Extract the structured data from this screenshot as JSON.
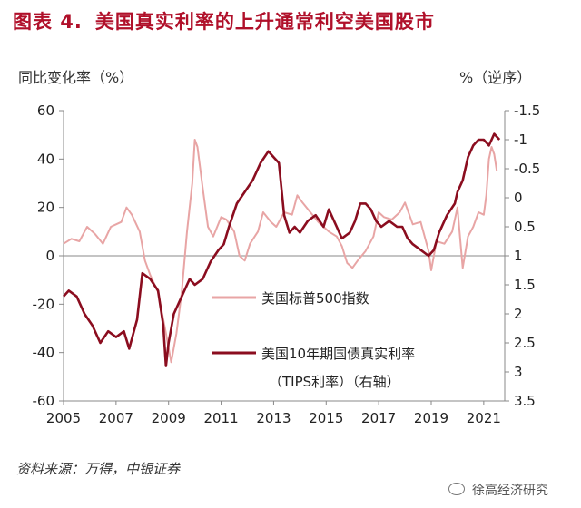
{
  "header": {
    "figure_number": "图表 4.",
    "title": "美国真实利率的上升通常利空美国股市"
  },
  "source": "资料来源：万得，中银证券",
  "watermark": "徐高经济研究",
  "colors": {
    "title": "#b0102a",
    "sp500": "#e8a5a5",
    "tips": "#8b0d1f",
    "axis": "#888888"
  },
  "chart_data": {
    "type": "line",
    "title": "美国真实利率的上升通常利空美国股市",
    "y_left": {
      "label": "同比变化率（%）",
      "min": -60,
      "max": 60,
      "ticks": [
        60,
        40,
        20,
        0,
        -20,
        -40,
        -60
      ]
    },
    "y_right": {
      "label": "%（逆序）",
      "min": -1.5,
      "max": 3.5,
      "inverted": true,
      "ticks": [
        "-1.5",
        "-1",
        "-0.5",
        "0",
        "0.5",
        "1",
        "1.5",
        "2",
        "2.5",
        "3",
        "3.5"
      ]
    },
    "x": {
      "min": 2005,
      "max": 2021.8,
      "ticks": [
        "2005",
        "2007",
        "2009",
        "2011",
        "2013",
        "2015",
        "2017",
        "2019",
        "2021"
      ]
    },
    "series": [
      {
        "name": "美国标普500指数",
        "axis": "left",
        "points": [
          [
            2005.0,
            5
          ],
          [
            2005.3,
            7
          ],
          [
            2005.6,
            6
          ],
          [
            2005.9,
            12
          ],
          [
            2006.2,
            9
          ],
          [
            2006.5,
            5
          ],
          [
            2006.8,
            12
          ],
          [
            2007.0,
            13
          ],
          [
            2007.2,
            14
          ],
          [
            2007.4,
            20
          ],
          [
            2007.6,
            17
          ],
          [
            2007.9,
            10
          ],
          [
            2008.1,
            -2
          ],
          [
            2008.3,
            -8
          ],
          [
            2008.6,
            -15
          ],
          [
            2008.9,
            -32
          ],
          [
            2009.1,
            -44
          ],
          [
            2009.3,
            -32
          ],
          [
            2009.5,
            -15
          ],
          [
            2009.7,
            10
          ],
          [
            2009.9,
            30
          ],
          [
            2010.0,
            48
          ],
          [
            2010.1,
            45
          ],
          [
            2010.3,
            28
          ],
          [
            2010.5,
            12
          ],
          [
            2010.7,
            8
          ],
          [
            2011.0,
            16
          ],
          [
            2011.2,
            15
          ],
          [
            2011.5,
            10
          ],
          [
            2011.7,
            0
          ],
          [
            2011.9,
            -2
          ],
          [
            2012.1,
            5
          ],
          [
            2012.4,
            10
          ],
          [
            2012.6,
            18
          ],
          [
            2012.9,
            14
          ],
          [
            2013.1,
            12
          ],
          [
            2013.4,
            18
          ],
          [
            2013.7,
            17
          ],
          [
            2013.9,
            25
          ],
          [
            2014.1,
            22
          ],
          [
            2014.4,
            18
          ],
          [
            2014.7,
            14
          ],
          [
            2014.9,
            12
          ],
          [
            2015.1,
            10
          ],
          [
            2015.4,
            8
          ],
          [
            2015.6,
            4
          ],
          [
            2015.8,
            -3
          ],
          [
            2016.0,
            -5
          ],
          [
            2016.2,
            -2
          ],
          [
            2016.5,
            2
          ],
          [
            2016.8,
            8
          ],
          [
            2017.0,
            18
          ],
          [
            2017.2,
            16
          ],
          [
            2017.5,
            15
          ],
          [
            2017.8,
            18
          ],
          [
            2018.0,
            22
          ],
          [
            2018.3,
            13
          ],
          [
            2018.6,
            14
          ],
          [
            2018.9,
            2
          ],
          [
            2019.0,
            -6
          ],
          [
            2019.2,
            6
          ],
          [
            2019.5,
            5
          ],
          [
            2019.8,
            10
          ],
          [
            2020.0,
            20
          ],
          [
            2020.2,
            -5
          ],
          [
            2020.4,
            8
          ],
          [
            2020.6,
            12
          ],
          [
            2020.8,
            18
          ],
          [
            2021.0,
            17
          ],
          [
            2021.1,
            25
          ],
          [
            2021.2,
            40
          ],
          [
            2021.3,
            45
          ],
          [
            2021.4,
            42
          ],
          [
            2021.5,
            35
          ]
        ]
      },
      {
        "name": "美国10年期国债真实利率（TIPS利率）（右轴）",
        "axis": "right",
        "points": [
          [
            2005.0,
            1.7
          ],
          [
            2005.2,
            1.6
          ],
          [
            2005.5,
            1.7
          ],
          [
            2005.8,
            2.0
          ],
          [
            2006.1,
            2.2
          ],
          [
            2006.4,
            2.5
          ],
          [
            2006.7,
            2.3
          ],
          [
            2007.0,
            2.4
          ],
          [
            2007.3,
            2.3
          ],
          [
            2007.5,
            2.6
          ],
          [
            2007.8,
            2.1
          ],
          [
            2008.0,
            1.3
          ],
          [
            2008.3,
            1.4
          ],
          [
            2008.6,
            1.6
          ],
          [
            2008.8,
            2.2
          ],
          [
            2008.9,
            2.9
          ],
          [
            2009.0,
            2.5
          ],
          [
            2009.2,
            2.0
          ],
          [
            2009.5,
            1.7
          ],
          [
            2009.8,
            1.4
          ],
          [
            2010.0,
            1.5
          ],
          [
            2010.3,
            1.4
          ],
          [
            2010.6,
            1.1
          ],
          [
            2010.9,
            0.9
          ],
          [
            2011.1,
            0.8
          ],
          [
            2011.3,
            0.5
          ],
          [
            2011.6,
            0.1
          ],
          [
            2011.9,
            -0.1
          ],
          [
            2012.2,
            -0.3
          ],
          [
            2012.5,
            -0.6
          ],
          [
            2012.8,
            -0.8
          ],
          [
            2013.0,
            -0.7
          ],
          [
            2013.2,
            -0.6
          ],
          [
            2013.4,
            0.3
          ],
          [
            2013.6,
            0.6
          ],
          [
            2013.8,
            0.5
          ],
          [
            2014.0,
            0.6
          ],
          [
            2014.3,
            0.4
          ],
          [
            2014.6,
            0.3
          ],
          [
            2014.9,
            0.5
          ],
          [
            2015.1,
            0.2
          ],
          [
            2015.4,
            0.5
          ],
          [
            2015.6,
            0.7
          ],
          [
            2015.9,
            0.6
          ],
          [
            2016.1,
            0.4
          ],
          [
            2016.3,
            0.1
          ],
          [
            2016.5,
            0.1
          ],
          [
            2016.7,
            0.2
          ],
          [
            2016.9,
            0.4
          ],
          [
            2017.1,
            0.5
          ],
          [
            2017.4,
            0.4
          ],
          [
            2017.7,
            0.5
          ],
          [
            2017.9,
            0.5
          ],
          [
            2018.1,
            0.7
          ],
          [
            2018.3,
            0.8
          ],
          [
            2018.6,
            0.9
          ],
          [
            2018.9,
            1.0
          ],
          [
            2019.1,
            0.9
          ],
          [
            2019.3,
            0.6
          ],
          [
            2019.6,
            0.3
          ],
          [
            2019.9,
            0.1
          ],
          [
            2020.0,
            -0.1
          ],
          [
            2020.2,
            -0.3
          ],
          [
            2020.4,
            -0.7
          ],
          [
            2020.6,
            -0.9
          ],
          [
            2020.8,
            -1.0
          ],
          [
            2021.0,
            -1.0
          ],
          [
            2021.2,
            -0.9
          ],
          [
            2021.4,
            -1.1
          ],
          [
            2021.6,
            -1.0
          ]
        ]
      }
    ]
  }
}
